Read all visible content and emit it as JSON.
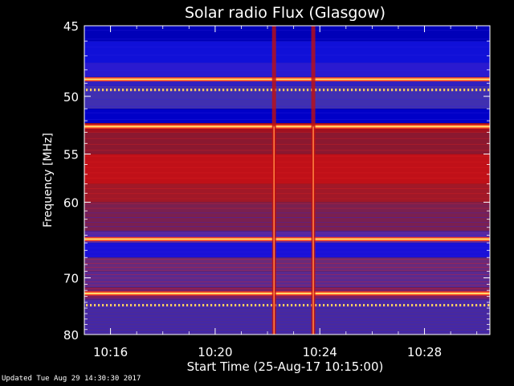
{
  "chart_data": {
    "type": "heatmap",
    "title": "Solar radio Flux (Glasgow)",
    "xlabel": "Start Time (25-Aug-17 10:15:00)",
    "ylabel": "Frequency [MHz]",
    "x_ticks": [
      "10:16",
      "10:20",
      "10:24",
      "10:28"
    ],
    "x_tick_minutes": [
      1,
      5,
      9,
      13
    ],
    "xlim_minutes_after_start": [
      0,
      15.5
    ],
    "y_ticks": [
      45,
      50,
      55,
      60,
      70,
      80
    ],
    "ylim": [
      45,
      80
    ],
    "y_scale": "reciprocal",
    "bursts": [
      {
        "time": "10:22:15",
        "label": "vertical burst"
      },
      {
        "time": "10:23:45",
        "label": "vertical burst"
      }
    ],
    "bright_bands_mhz": [
      48.7,
      52.5,
      64.5,
      72.5
    ]
  },
  "footer": {
    "updated": "Updated Tue Aug 29 14:30:30 2017"
  },
  "colors": {
    "background": "#000000",
    "deep_blue": "#0000cc",
    "purple": "#5a2a9a",
    "red": "#cc1010",
    "hot": "#ffe070"
  }
}
